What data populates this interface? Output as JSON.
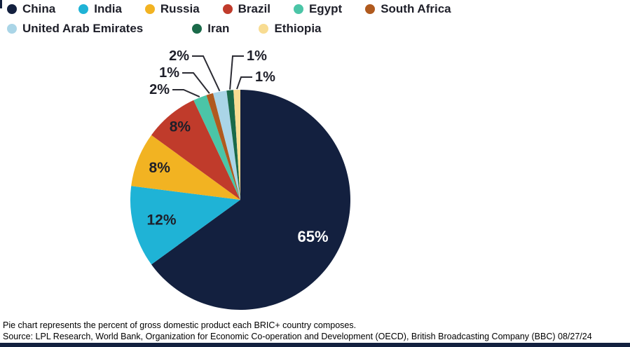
{
  "figure": {
    "footnote": "Pie chart represents the percent of gross domestic product each BRIC+ country composes.",
    "source": "Source: LPL Research, World Bank, Organization for Economic Co-operation and Development (OECD), British Broadcasting Company (BBC) 08/27/24"
  },
  "chart_data": {
    "type": "pie",
    "title": "Percent of gross domestic product each BRIC+ country composes",
    "labels": [
      "China",
      "India",
      "Russia",
      "Brazil",
      "Egypt",
      "South Africa",
      "United Arab Emirates",
      "Iran",
      "Ethiopia"
    ],
    "values": [
      65,
      12,
      8,
      8,
      2,
      1,
      2,
      1,
      1
    ],
    "value_labels": [
      "65%",
      "12%",
      "8%",
      "8%",
      "2%",
      "1%",
      "2%",
      "1%",
      "1%"
    ],
    "unit": "%",
    "colors": [
      "#13203f",
      "#1fb3d6",
      "#f2b322",
      "#c03b2b",
      "#4bc5a7",
      "#b05a1e",
      "#aad5e7",
      "#1a6a49",
      "#f8dc92"
    ],
    "start_angle": "12 o'clock",
    "direction": "clockwise",
    "legend_position": "top-left",
    "legend_rows": [
      [
        "China",
        "India",
        "Russia",
        "Brazil",
        "Egypt",
        "South Africa"
      ],
      [
        "United Arab Emirates",
        "Iran",
        "Ethiopia"
      ]
    ]
  },
  "colors": {
    "background": "#ffffff",
    "legend_text": "#1e1f29",
    "label_text": "#1e1f29",
    "label_text_light": "#ffffff",
    "leader_line": "#2b2b33",
    "footnote_text": "#000000",
    "bottom_bar": "#13203f"
  }
}
